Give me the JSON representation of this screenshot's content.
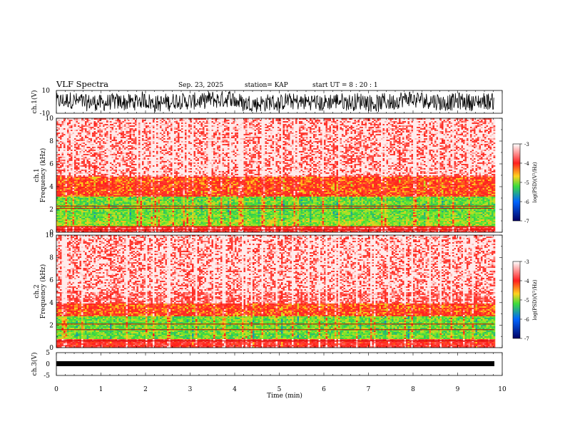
{
  "header": {
    "title": "VLF Spectra",
    "date": "Sep. 23, 2025",
    "station": "station= KAP",
    "start": "start  UT  =   8 : 20 : 1"
  },
  "colors": {
    "high": "#ff2a1e",
    "mid_high": "#ffd21e",
    "mid": "#46e646",
    "low": "#0000a0",
    "waveform": "#000000"
  },
  "chart_data": [
    {
      "type": "line",
      "name": "ch1-waveform",
      "ylabel": "ch.1(V)",
      "yticks": [
        "10",
        "-10"
      ],
      "ylim": [
        -10,
        10
      ],
      "xlim": [
        0,
        10
      ],
      "data_extent_min": 9.82,
      "note": "broadband noise, amplitude roughly -8 to 8 V"
    },
    {
      "type": "heatmap",
      "name": "ch1-spectrogram",
      "ylabel": "ch.1\nFrequency (kHz)",
      "ylim": [
        0,
        10
      ],
      "yticks": [
        "0",
        "2",
        "4",
        "6",
        "8",
        "10"
      ],
      "xlim": [
        0,
        10
      ],
      "band_structure_khz": [
        {
          "from": 0,
          "to": 0.6,
          "level": -3.6
        },
        {
          "from": 0.6,
          "to": 1.2,
          "level": -4.8
        },
        {
          "from": 1.2,
          "to": 3.2,
          "level": -5.0
        },
        {
          "from": 3.2,
          "to": 5.0,
          "level": -4.0
        },
        {
          "from": 5.0,
          "to": 10,
          "level": -3.3
        }
      ],
      "lines_khz": [
        2.1,
        2.3,
        0.5,
        0.2
      ],
      "colorbar": {
        "label": "log(PSD)(V²/Hz)",
        "ticks": [
          "-3",
          "-4",
          "-5",
          "-6",
          "-7"
        ],
        "range": [
          -7,
          -3
        ]
      }
    },
    {
      "type": "heatmap",
      "name": "ch2-spectrogram",
      "ylabel": "ch.2\nFrequency (kHz)",
      "ylim": [
        0,
        10
      ],
      "yticks": [
        "0",
        "2",
        "4",
        "6",
        "8",
        "10"
      ],
      "xlim": [
        0,
        10
      ],
      "band_structure_khz": [
        {
          "from": 0,
          "to": 0.8,
          "level": -3.7
        },
        {
          "from": 0.8,
          "to": 2.8,
          "level": -5.0
        },
        {
          "from": 2.8,
          "to": 4.0,
          "level": -4.0
        },
        {
          "from": 4.0,
          "to": 10,
          "level": -3.3
        }
      ],
      "lines_khz": [
        2.1,
        1.6,
        0.6
      ],
      "colorbar": {
        "label": "log(PSD)(V²/Hz)",
        "ticks": [
          "-3",
          "-4",
          "-5",
          "-6",
          "-7"
        ],
        "range": [
          -7,
          -3
        ]
      }
    },
    {
      "type": "line",
      "name": "ch3-waveform",
      "ylabel": "ch.3(V)",
      "yticks": [
        "5",
        "0",
        "-5"
      ],
      "ylim": [
        -5,
        5
      ],
      "xlim": [
        0,
        10
      ],
      "data_extent_min": 9.82,
      "note": "narrow band around -0.2 V"
    }
  ],
  "xaxis": {
    "label": "Time (min)",
    "ticks": [
      "0",
      "1",
      "2",
      "3",
      "4",
      "5",
      "6",
      "7",
      "8",
      "9",
      "10"
    ]
  }
}
